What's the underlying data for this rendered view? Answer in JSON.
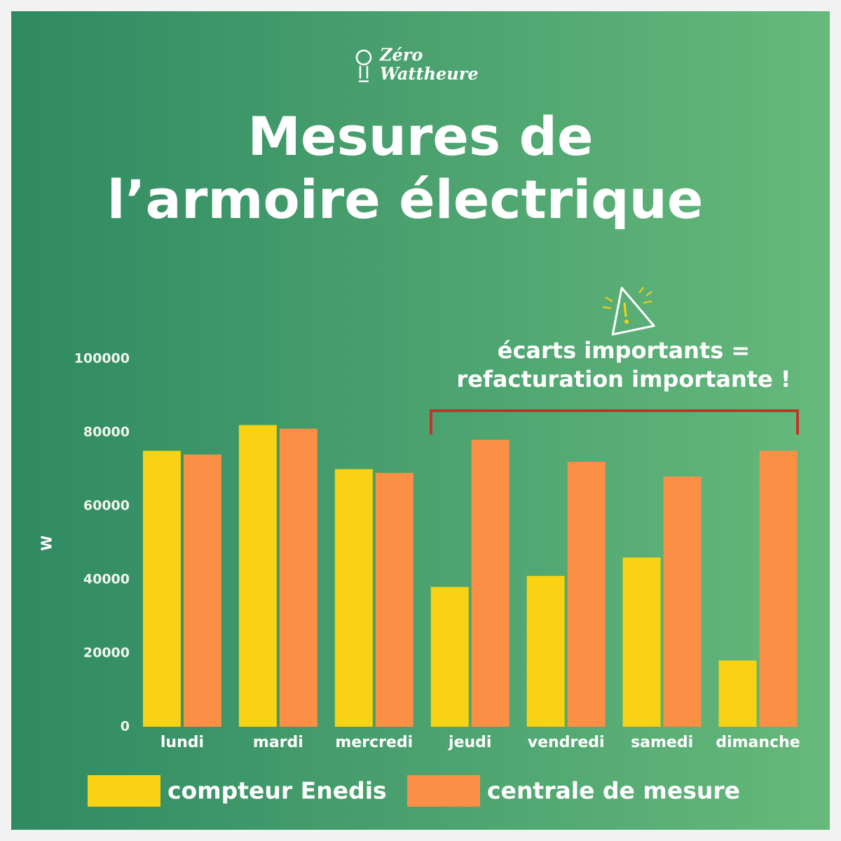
{
  "logo": [
    "Zéro",
    "Wattheure"
  ],
  "chart_data": {
    "type": "bar",
    "title": [
      "Mesures de",
      "l’armoire électrique"
    ],
    "annotation": [
      "écarts importants =",
      "refacturation importante !"
    ],
    "y_label": "W",
    "categories": [
      "lundi",
      "mardi",
      "mercredi",
      "jeudi",
      "vendredi",
      "samedi",
      "dimanche"
    ],
    "series": [
      {
        "name": "compteur Enedis",
        "color": "#f9d213",
        "values": [
          75000,
          82000,
          70000,
          38000,
          41000,
          46000,
          18000
        ]
      },
      {
        "name": "centrale de mesure",
        "color": "#fb8f45",
        "values": [
          74000,
          81000,
          69000,
          78000,
          72000,
          68000,
          75000
        ]
      }
    ],
    "ylim": [
      0,
      100000
    ],
    "yticks": [
      0,
      20000,
      40000,
      60000,
      80000,
      100000
    ],
    "grid": false
  }
}
